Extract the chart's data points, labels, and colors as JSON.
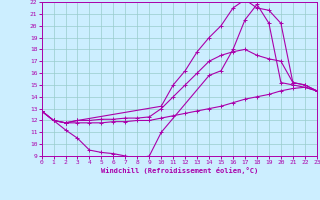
{
  "xlabel": "Windchill (Refroidissement éolien,°C)",
  "bg_color": "#cceeff",
  "line_color": "#aa00aa",
  "grid_color": "#99cccc",
  "xmin": 0,
  "xmax": 23,
  "ymin": 9,
  "ymax": 22,
  "lines": [
    {
      "x": [
        0,
        1,
        2,
        3,
        4,
        5,
        6,
        7,
        8,
        9,
        10,
        14,
        15,
        16,
        17,
        18,
        19,
        20,
        21,
        22,
        23
      ],
      "y": [
        12.8,
        12.0,
        11.2,
        10.5,
        9.5,
        9.3,
        9.2,
        9.0,
        8.8,
        9.0,
        11.0,
        15.8,
        16.2,
        18.0,
        20.5,
        21.8,
        20.2,
        15.2,
        15.0,
        14.8,
        14.5
      ]
    },
    {
      "x": [
        0,
        1,
        2,
        3,
        4,
        5,
        6,
        7,
        8,
        9,
        10,
        11,
        12,
        13,
        14,
        15,
        16,
        17,
        18,
        19,
        20,
        21,
        22,
        23
      ],
      "y": [
        12.8,
        12.0,
        11.8,
        11.8,
        11.8,
        11.8,
        11.9,
        11.9,
        12.0,
        12.0,
        12.2,
        12.4,
        12.6,
        12.8,
        13.0,
        13.2,
        13.5,
        13.8,
        14.0,
        14.2,
        14.5,
        14.7,
        14.8,
        14.5
      ]
    },
    {
      "x": [
        0,
        1,
        2,
        3,
        10,
        11,
        12,
        13,
        14,
        15,
        16,
        17,
        18,
        19,
        20,
        21,
        22,
        23
      ],
      "y": [
        12.8,
        12.0,
        11.8,
        12.0,
        13.2,
        15.0,
        16.2,
        17.8,
        19.0,
        20.0,
        21.5,
        22.2,
        21.5,
        21.3,
        20.2,
        15.2,
        15.0,
        14.5
      ]
    },
    {
      "x": [
        0,
        1,
        2,
        3,
        4,
        5,
        6,
        7,
        8,
        9,
        10,
        11,
        12,
        13,
        14,
        15,
        16,
        17,
        18,
        19,
        20,
        21,
        22,
        23
      ],
      "y": [
        12.8,
        12.0,
        11.8,
        12.0,
        12.0,
        12.1,
        12.1,
        12.2,
        12.2,
        12.3,
        13.0,
        14.0,
        15.0,
        16.0,
        17.0,
        17.5,
        17.8,
        18.0,
        17.5,
        17.2,
        17.0,
        15.2,
        15.0,
        14.5
      ]
    }
  ]
}
